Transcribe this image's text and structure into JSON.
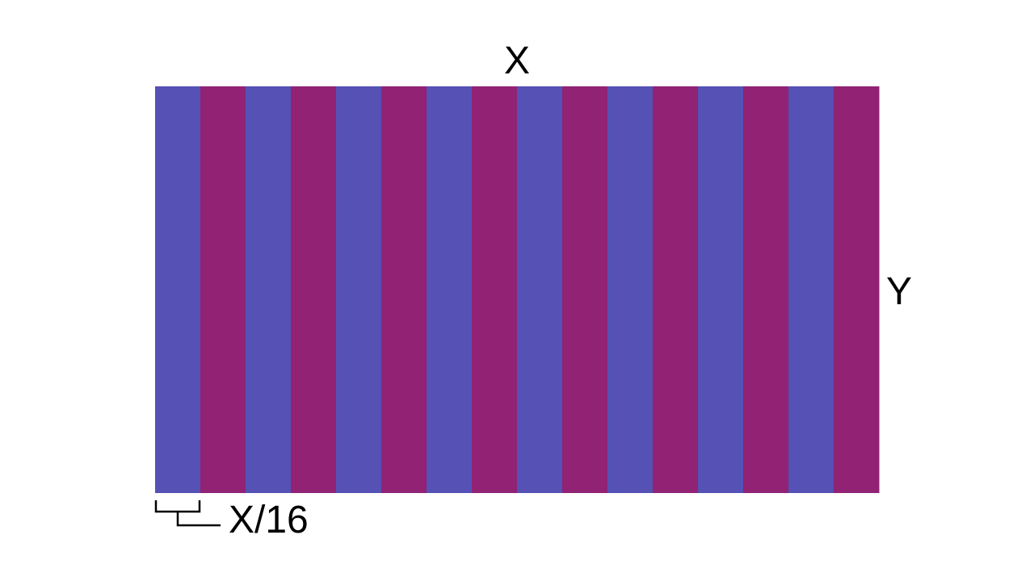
{
  "diagram": {
    "stripe_count": 16,
    "colors": {
      "stripe_a": "#5551b5",
      "stripe_b": "#912274",
      "bracket": "#000000",
      "text": "#000000"
    },
    "labels": {
      "width": "X",
      "height": "Y",
      "stripe_width": "X/16"
    }
  }
}
